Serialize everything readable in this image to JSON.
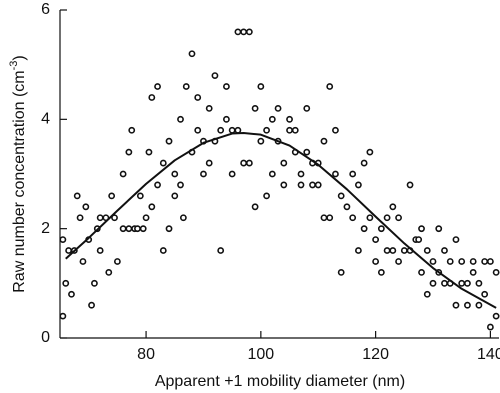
{
  "chart_data": {
    "type": "scatter",
    "xlabel": "Apparent +1 mobility diameter (nm)",
    "ylabel": "Raw number concentration (cm",
    "ylabel_sup": "-3",
    "ylabel_end": ")",
    "xlim": [
      65,
      141.5
    ],
    "ylim": [
      0,
      6
    ],
    "xticks": [
      80,
      100,
      120,
      140
    ],
    "yticks": [
      0,
      2,
      4,
      6
    ],
    "grid": false,
    "series": [
      {
        "mode": "markers",
        "color": "#111111",
        "x": [
          65.5,
          65.5,
          66,
          66.5,
          67,
          67.5,
          68,
          68.5,
          69,
          69.5,
          70,
          70.5,
          71,
          71.5,
          72,
          72,
          73,
          73.5,
          74,
          74.5,
          75,
          76,
          76,
          77,
          77,
          77.5,
          78,
          78.5,
          79,
          79.5,
          80,
          80.5,
          81,
          81,
          82,
          82,
          83,
          83,
          84,
          84,
          85,
          85,
          86,
          86,
          86.5,
          87,
          88,
          88,
          89,
          89,
          90,
          90,
          91,
          91,
          92,
          92,
          93,
          93,
          94,
          94,
          95,
          95,
          96,
          96,
          97,
          97,
          98,
          98,
          99,
          99,
          100,
          100,
          101,
          101,
          102,
          102,
          103,
          103,
          104,
          104,
          105,
          105,
          106,
          106,
          107,
          107,
          108,
          108,
          109,
          109,
          110,
          110,
          111,
          111,
          112,
          112,
          113,
          113,
          114,
          114,
          115,
          116,
          116,
          117,
          117,
          118,
          118,
          119,
          119,
          120,
          120,
          121,
          121,
          122,
          122,
          123,
          123,
          124,
          124,
          125,
          126,
          126,
          127,
          127.5,
          128,
          128,
          129,
          129,
          130,
          130,
          131,
          131,
          132,
          132,
          133,
          133,
          134,
          134,
          135,
          135,
          136,
          136,
          137,
          137,
          138,
          138,
          139,
          139,
          140,
          140,
          141,
          141
        ],
        "values": [
          0.4,
          1.8,
          1.0,
          1.6,
          0.8,
          1.6,
          2.6,
          2.2,
          1.4,
          2.4,
          1.8,
          0.6,
          1.0,
          2.0,
          2.2,
          1.6,
          2.2,
          1.2,
          2.6,
          2.2,
          1.4,
          3.0,
          2.0,
          3.4,
          2.0,
          3.8,
          2.0,
          2.0,
          2.6,
          2.0,
          2.2,
          3.4,
          2.4,
          4.4,
          2.8,
          4.6,
          1.6,
          3.2,
          2.0,
          3.6,
          2.6,
          3.0,
          2.8,
          4.0,
          2.2,
          4.6,
          3.4,
          5.2,
          4.4,
          3.8,
          3.0,
          3.6,
          4.2,
          3.2,
          4.8,
          3.6,
          1.6,
          3.8,
          4.0,
          4.6,
          3.8,
          3.0,
          5.6,
          3.8,
          5.6,
          3.2,
          5.6,
          3.2,
          4.2,
          2.4,
          4.6,
          3.6,
          2.6,
          3.8,
          4.0,
          3.0,
          4.2,
          3.6,
          3.2,
          2.8,
          4.0,
          3.8,
          3.8,
          3.4,
          3.0,
          2.8,
          4.2,
          3.4,
          3.2,
          2.8,
          3.2,
          2.8,
          3.6,
          2.2,
          4.6,
          2.2,
          3.8,
          3.0,
          2.6,
          1.2,
          2.4,
          3.0,
          2.2,
          2.8,
          1.6,
          3.2,
          2.0,
          3.4,
          2.2,
          1.8,
          1.4,
          2.0,
          1.2,
          1.6,
          2.2,
          2.4,
          1.6,
          2.2,
          1.4,
          1.6,
          2.8,
          1.6,
          1.8,
          1.8,
          1.2,
          2.0,
          1.6,
          0.8,
          1.4,
          1.0,
          2.0,
          1.2,
          1.6,
          1.0,
          1.4,
          1.0,
          1.8,
          0.6,
          1.4,
          1.0,
          1.0,
          0.6,
          1.2,
          1.4,
          1.0,
          0.6,
          1.4,
          0.8,
          0.2,
          1.4,
          0.4,
          1.2
        ]
      },
      {
        "mode": "line",
        "color": "#111111",
        "x": [
          66,
          70,
          75,
          80,
          85,
          90,
          95,
          97,
          100,
          105,
          110,
          115,
          120,
          125,
          130,
          135,
          141
        ],
        "values": [
          1.45,
          1.83,
          2.33,
          2.82,
          3.25,
          3.57,
          3.74,
          3.75,
          3.72,
          3.52,
          3.17,
          2.72,
          2.22,
          1.73,
          1.28,
          0.9,
          0.55
        ]
      }
    ]
  }
}
